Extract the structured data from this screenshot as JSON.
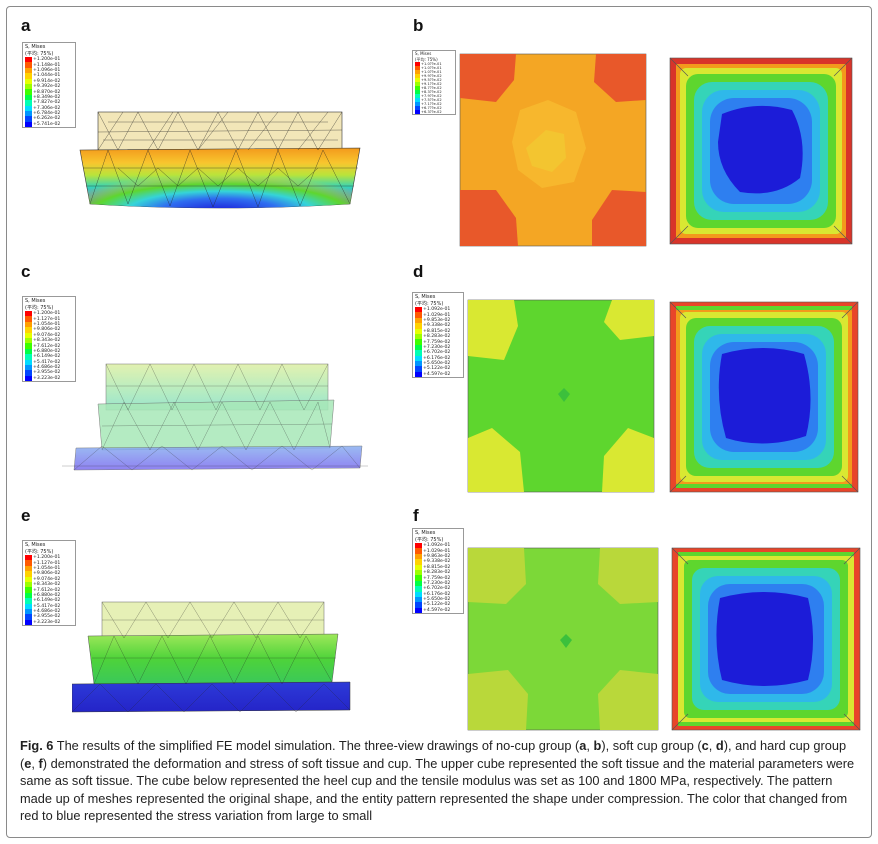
{
  "figure": {
    "panels": [
      {
        "id": "a",
        "label": "a"
      },
      {
        "id": "b",
        "label": "b"
      },
      {
        "id": "c",
        "label": "c"
      },
      {
        "id": "d",
        "label": "d"
      },
      {
        "id": "e",
        "label": "e"
      },
      {
        "id": "f",
        "label": "f"
      }
    ],
    "legends": {
      "a": {
        "title": "S, Mises",
        "subtitle": "(平均: 75%)",
        "values": [
          "+1.200e-01",
          "+1.148e-01",
          "+1.096e-01",
          "+1.044e-01",
          "+9.914e-02",
          "+9.392e-02",
          "+8.870e-02",
          "+8.349e-02",
          "+7.827e-02",
          "+7.306e-02",
          "+6.784e-02",
          "+6.262e-02",
          "+5.741e-02"
        ]
      },
      "b": {
        "title": "S, Mises",
        "subtitle": "(平均: 75%)",
        "values": [
          "+1.0??e-01",
          "+1.0??e-01",
          "+1.0??e-01",
          "+9.9??e-02",
          "+9.5??e-02",
          "+9.1??e-02",
          "+8.7??e-02",
          "+8.3??e-02",
          "+7.9??e-02",
          "+7.5??e-02",
          "+7.1??e-02",
          "+6.7??e-02",
          "+6.3??e-02"
        ]
      },
      "c": {
        "title": "S, Mises",
        "subtitle": "(平均: 75%)",
        "values": [
          "+1.200e-01",
          "+1.127e-01",
          "+1.054e-01",
          "+9.806e-02",
          "+9.074e-02",
          "+8.343e-02",
          "+7.612e-02",
          "+6.880e-02",
          "+6.149e-02",
          "+5.417e-02",
          "+4.686e-02",
          "+3.955e-02",
          "+3.223e-02"
        ]
      },
      "d": {
        "title": "S, Mises",
        "subtitle": "(平均: 75%)",
        "values": [
          "+1.092e-01",
          "+1.029e-01",
          "+9.853e-02",
          "+9.338e-02",
          "+8.815e-02",
          "+8.283e-02",
          "+7.759e-02",
          "+7.230e-02",
          "+6.702e-02",
          "+6.176e-02",
          "+5.650e-02",
          "+5.122e-02",
          "+4.597e-02"
        ]
      },
      "e": {
        "title": "S, Mises",
        "subtitle": "(平均: 75%)",
        "values": [
          "+1.200e-01",
          "+1.127e-01",
          "+1.054e-01",
          "+9.806e-02",
          "+9.074e-02",
          "+8.343e-02",
          "+7.612e-02",
          "+6.880e-02",
          "+6.149e-02",
          "+5.417e-02",
          "+4.686e-02",
          "+3.955e-02",
          "+3.223e-02"
        ]
      },
      "f": {
        "title": "S, Mises",
        "subtitle": "(平均: 75%)",
        "values": [
          "+1.092e-01",
          "+1.029e-01",
          "+9.863e-02",
          "+9.338e-02",
          "+8.815e-02",
          "+8.283e-02",
          "+7.759e-02",
          "+7.230e-02",
          "+6.702e-02",
          "+6.176e-02",
          "+5.650e-02",
          "+5.122e-02",
          "+4.597e-02"
        ]
      }
    },
    "legend_colors": [
      "#ff0000",
      "#ff5a00",
      "#ffa000",
      "#ffd200",
      "#e6ff00",
      "#9cff00",
      "#3cff00",
      "#00ff46",
      "#00ffb4",
      "#00dcff",
      "#0096ff",
      "#0046ff",
      "#0000ff"
    ],
    "contour_colors": {
      "red": "#e8452a",
      "orange": "#f39a1c",
      "lightorange": "#f8b62e",
      "yellow": "#d9e832",
      "yellowgreen": "#b9e43a",
      "green": "#5ed62e",
      "brightgreen": "#55d43a",
      "cyan": "#35d4d8",
      "lightblue": "#3fa0f2",
      "blue": "#2342e6",
      "darkblue": "#1c1cd8",
      "paletop": "#e9ecb0"
    }
  },
  "caption": {
    "fig_label": "Fig. 6",
    "text_1": " The results of the simplified FE model simulation. The three-view drawings of no-cup group (",
    "a": "a",
    "sep_ab": ", ",
    "b": "b",
    "text_2": "), soft cup group (",
    "c": "c",
    "sep_cd": ", ",
    "d": "d",
    "text_3": "), and hard cup group (",
    "e": "e",
    "sep_ef": ", ",
    "f": "f",
    "text_4": ") demonstrated the deformation and stress of soft tissue and cup. The upper cube represented the soft tissue and the material parameters were same as soft tissue. The cube below represented the heel cup and the tensile modulus was set as 100 and 1800 MPa, respectively. The pattern made up of meshes represented the original shape, and the entity pattern represented the shape under compression. The color that changed from red to blue represented the stress variation from large to small"
  }
}
